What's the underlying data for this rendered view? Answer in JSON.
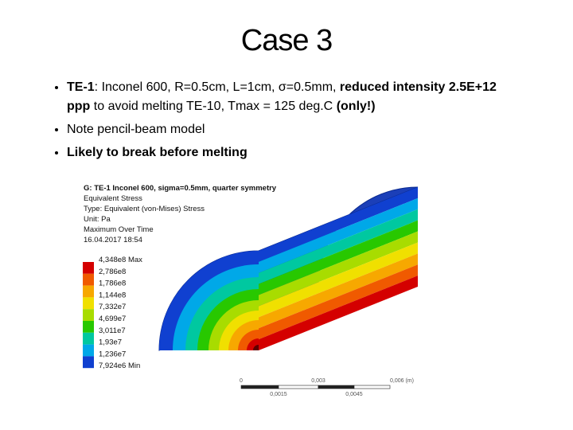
{
  "title": "Case 3",
  "bullets": [
    {
      "parts": [
        {
          "text": "TE-1",
          "bold": true
        },
        {
          "text": ": Inconel 600, R=0.5cm, L=1cm, σ=0.5mm, ",
          "bold": false
        },
        {
          "text": "reduced intensity 2.5E+12 ppp",
          "bold": true
        },
        {
          "text": " to avoid melting TE-10, Tmax = 125 deg.C ",
          "bold": false
        },
        {
          "text": "(only!)",
          "bold": true
        }
      ]
    },
    {
      "parts": [
        {
          "text": "Note pencil-beam model",
          "bold": false
        }
      ]
    },
    {
      "parts": [
        {
          "text": "Likely to break before melting",
          "bold": true
        }
      ]
    }
  ],
  "figure": {
    "header": [
      "G: TE-1 Inconel 600, sigma=0.5mm, quarter symmetry",
      "Equivalent Stress",
      "Type: Equivalent (von-Mises) Stress",
      "Unit: Pa",
      "Maximum Over Time",
      "16.04.2017 18:54"
    ],
    "legend_labels": [
      "4,348e8 Max",
      "2,786e8",
      "1,786e8",
      "1,144e8",
      "7,332e7",
      "4,699e7",
      "3,011e7",
      "1,93e7",
      "1,236e7",
      "7,924e6 Min"
    ],
    "legend_colors": [
      "#d40000",
      "#f05a00",
      "#f7a800",
      "#f0e000",
      "#a8dc00",
      "#28c800",
      "#00c8a0",
      "#00a8e8",
      "#1040d0"
    ],
    "scale_top": [
      "0",
      "0,003",
      "0,006 (m)"
    ],
    "scale_bottom": [
      "0,0015",
      "0,0045"
    ]
  }
}
